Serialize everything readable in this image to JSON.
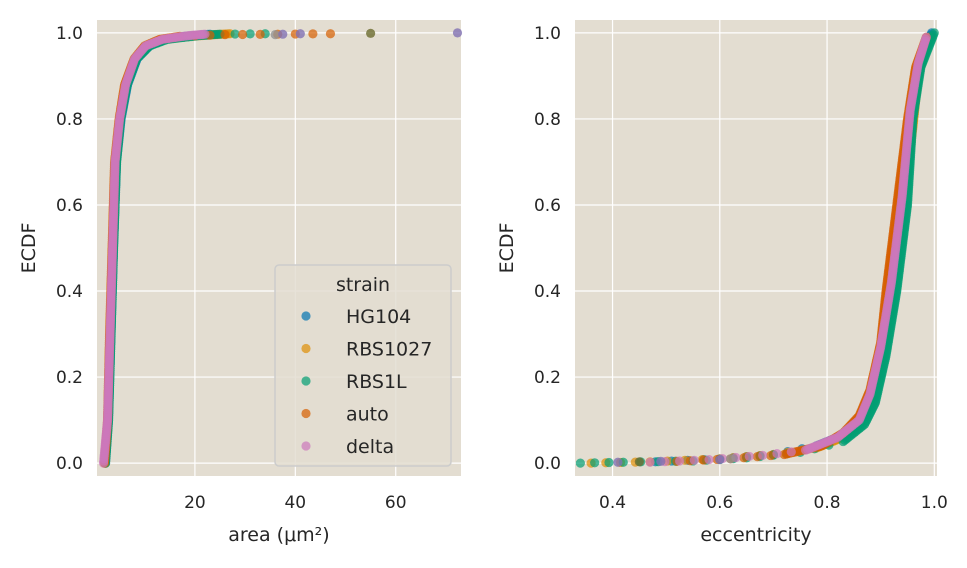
{
  "chart_data": [
    {
      "type": "scatter",
      "panel": "left",
      "xlabel": "area (μm²)",
      "ylabel": "ECDF",
      "xlim": [
        0.5,
        73
      ],
      "ylim": [
        -0.03,
        1.03
      ],
      "xticks": [
        20,
        40,
        60
      ],
      "yticks": [
        0.0,
        0.2,
        0.4,
        0.6,
        0.8,
        1.0
      ],
      "grid": true,
      "legend_position": "lower-right",
      "legend_title": "strain",
      "background": "#e3ddd1",
      "series": [
        {
          "name": "HG104",
          "color": "#0173b2",
          "points": [
            [
              2.2,
              0.0
            ],
            [
              2.8,
              0.1
            ],
            [
              3.3,
              0.3
            ],
            [
              3.8,
              0.5
            ],
            [
              4.4,
              0.7
            ],
            [
              5.3,
              0.8
            ],
            [
              6.6,
              0.88
            ],
            [
              8.5,
              0.94
            ],
            [
              11,
              0.97
            ],
            [
              14,
              0.985
            ],
            [
              18,
              0.992
            ],
            [
              21,
              0.995
            ],
            [
              23,
              0.997
            ]
          ]
        },
        {
          "name": "RBS1027",
          "color": "#de8f05",
          "points": [
            [
              2.1,
              0.0
            ],
            [
              2.7,
              0.1
            ],
            [
              3.2,
              0.3
            ],
            [
              3.7,
              0.5
            ],
            [
              4.3,
              0.7
            ],
            [
              5.1,
              0.8
            ],
            [
              6.3,
              0.88
            ],
            [
              8.2,
              0.94
            ],
            [
              10.5,
              0.97
            ],
            [
              14,
              0.985
            ],
            [
              19,
              0.992
            ],
            [
              24,
              0.996
            ],
            [
              27,
              0.998
            ]
          ]
        },
        {
          "name": "RBS1L",
          "color": "#029e73",
          "points": [
            [
              2.2,
              0.0
            ],
            [
              2.8,
              0.1
            ],
            [
              3.3,
              0.3
            ],
            [
              3.8,
              0.5
            ],
            [
              4.4,
              0.7
            ],
            [
              5.2,
              0.8
            ],
            [
              6.5,
              0.88
            ],
            [
              8.4,
              0.94
            ],
            [
              11,
              0.97
            ],
            [
              14.5,
              0.985
            ],
            [
              18,
              0.99
            ],
            [
              21,
              0.994
            ],
            [
              25,
              0.997
            ],
            [
              34,
              0.998
            ]
          ]
        },
        {
          "name": "auto",
          "color": "#d55e00",
          "points": [
            [
              2.0,
              0.0
            ],
            [
              2.6,
              0.1
            ],
            [
              3.0,
              0.3
            ],
            [
              3.5,
              0.5
            ],
            [
              4.0,
              0.7
            ],
            [
              4.9,
              0.8
            ],
            [
              6.0,
              0.88
            ],
            [
              7.9,
              0.94
            ],
            [
              10,
              0.97
            ],
            [
              13,
              0.985
            ],
            [
              17,
              0.992
            ],
            [
              26,
              0.996
            ],
            [
              47,
              0.998
            ]
          ]
        },
        {
          "name": "delta",
          "color": "#cc78bc",
          "points": [
            [
              1.8,
              0.0
            ],
            [
              2.6,
              0.1
            ],
            [
              3.1,
              0.3
            ],
            [
              3.6,
              0.5
            ],
            [
              4.1,
              0.7
            ],
            [
              5.0,
              0.8
            ],
            [
              6.2,
              0.88
            ],
            [
              8.0,
              0.94
            ],
            [
              10.2,
              0.97
            ],
            [
              13.5,
              0.985
            ],
            [
              17,
              0.991
            ],
            [
              19,
              0.994
            ],
            [
              21,
              0.996
            ],
            [
              22,
              0.997
            ]
          ]
        }
      ],
      "outliers": [
        {
          "color": "#949494",
          "x": 36,
          "y": 0.996
        },
        {
          "color": "#8172b3",
          "x": 37.5,
          "y": 0.997
        },
        {
          "color": "#8172b3",
          "x": 41,
          "y": 0.998
        },
        {
          "color": "#6b6b2e",
          "x": 55,
          "y": 0.999
        },
        {
          "color": "#8172b3",
          "x": 72.3,
          "y": 1.0
        }
      ]
    },
    {
      "type": "scatter",
      "panel": "right",
      "xlabel": "eccentricity",
      "ylabel": "ECDF",
      "xlim": [
        0.33,
        1.005
      ],
      "ylim": [
        -0.03,
        1.03
      ],
      "xticks": [
        0.4,
        0.6,
        0.8,
        1.0
      ],
      "yticks": [
        0.0,
        0.2,
        0.4,
        0.6,
        0.8,
        1.0
      ],
      "grid": true,
      "background": "#e3ddd1",
      "series": [
        {
          "name": "HG104",
          "color": "#0173b2",
          "points": [
            [
              0.48,
              0.003
            ],
            [
              0.6,
              0.01
            ],
            [
              0.7,
              0.02
            ],
            [
              0.78,
              0.04
            ],
            [
              0.82,
              0.06
            ],
            [
              0.86,
              0.1
            ],
            [
              0.88,
              0.15
            ],
            [
              0.9,
              0.25
            ],
            [
              0.92,
              0.4
            ],
            [
              0.94,
              0.6
            ],
            [
              0.96,
              0.8
            ],
            [
              0.97,
              0.9
            ],
            [
              0.985,
              0.97
            ],
            [
              0.995,
              1.0
            ]
          ]
        },
        {
          "name": "RBS1027",
          "color": "#de8f05",
          "points": [
            [
              0.36,
              0.0
            ],
            [
              0.47,
              0.003
            ],
            [
              0.6,
              0.01
            ],
            [
              0.7,
              0.02
            ],
            [
              0.78,
              0.035
            ],
            [
              0.82,
              0.055
            ],
            [
              0.86,
              0.09
            ],
            [
              0.88,
              0.14
            ],
            [
              0.9,
              0.23
            ],
            [
              0.92,
              0.38
            ],
            [
              0.94,
              0.58
            ],
            [
              0.96,
              0.78
            ],
            [
              0.97,
              0.9
            ],
            [
              0.99,
              0.99
            ]
          ]
        },
        {
          "name": "RBS1L",
          "color": "#029e73",
          "points": [
            [
              0.34,
              0.0
            ],
            [
              0.42,
              0.002
            ],
            [
              0.55,
              0.005
            ],
            [
              0.65,
              0.012
            ],
            [
              0.75,
              0.025
            ],
            [
              0.83,
              0.05
            ],
            [
              0.87,
              0.09
            ],
            [
              0.89,
              0.14
            ],
            [
              0.91,
              0.25
            ],
            [
              0.93,
              0.4
            ],
            [
              0.95,
              0.6
            ],
            [
              0.96,
              0.8
            ],
            [
              0.975,
              0.92
            ],
            [
              1.0,
              1.0
            ]
          ]
        },
        {
          "name": "auto",
          "color": "#d55e00",
          "points": [
            [
              0.52,
              0.004
            ],
            [
              0.62,
              0.01
            ],
            [
              0.72,
              0.02
            ],
            [
              0.79,
              0.04
            ],
            [
              0.83,
              0.07
            ],
            [
              0.86,
              0.11
            ],
            [
              0.88,
              0.17
            ],
            [
              0.9,
              0.28
            ],
            [
              0.91,
              0.4
            ],
            [
              0.93,
              0.6
            ],
            [
              0.95,
              0.8
            ],
            [
              0.965,
              0.92
            ],
            [
              0.985,
              0.99
            ]
          ]
        },
        {
          "name": "delta",
          "color": "#cc78bc",
          "points": [
            [
              0.47,
              0.002
            ],
            [
              0.58,
              0.008
            ],
            [
              0.68,
              0.018
            ],
            [
              0.76,
              0.03
            ],
            [
              0.82,
              0.06
            ],
            [
              0.86,
              0.1
            ],
            [
              0.88,
              0.16
            ],
            [
              0.9,
              0.27
            ],
            [
              0.92,
              0.42
            ],
            [
              0.94,
              0.62
            ],
            [
              0.955,
              0.82
            ],
            [
              0.97,
              0.93
            ],
            [
              0.985,
              0.99
            ]
          ]
        }
      ],
      "outliers": [
        {
          "color": "#8172b3",
          "x": 0.41,
          "y": 0.002
        },
        {
          "color": "#8172b3",
          "x": 0.49,
          "y": 0.004
        },
        {
          "color": "#6b6b2e",
          "x": 0.45,
          "y": 0.003
        },
        {
          "color": "#8172b3",
          "x": 0.6,
          "y": 0.008
        },
        {
          "color": "#949494",
          "x": 0.62,
          "y": 0.01
        }
      ]
    }
  ]
}
